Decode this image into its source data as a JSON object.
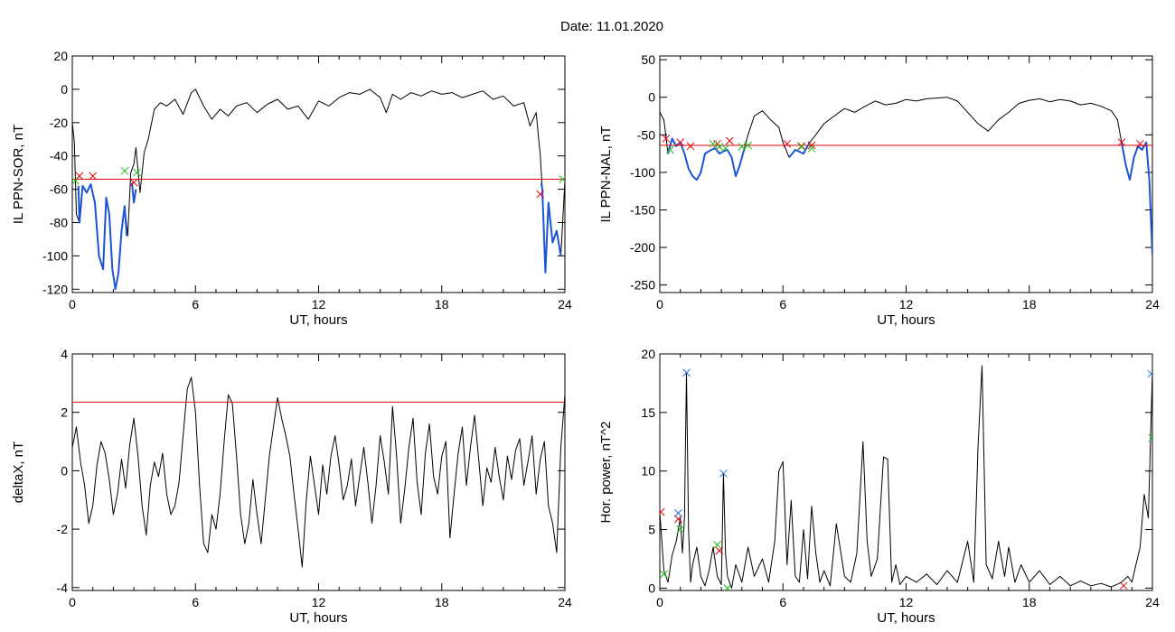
{
  "figure": {
    "title": "Date:  11.01.2020"
  },
  "colors": {
    "signal": "#000000",
    "threshold": "#e8000b",
    "segment": "#1b55d6",
    "marker_red": "#e8000b",
    "marker_green": "#1fbf1f",
    "marker_blue": "#1f6fd6"
  },
  "chart_data": [
    {
      "id": "ppn-sor",
      "type": "line",
      "title": "",
      "xlabel": "UT, hours",
      "ylabel": "IL PPN-SOR, nT",
      "xlim": [
        0,
        24
      ],
      "ylim": [
        -122,
        20
      ],
      "xticks": [
        0,
        6,
        12,
        18,
        24
      ],
      "yticks": [
        20,
        0,
        -20,
        -40,
        -60,
        -80,
        -100,
        -120
      ],
      "grid": false,
      "threshold": -54,
      "series": [
        {
          "role": "signal",
          "x": [
            0,
            0.1,
            0.2,
            0.35,
            0.5,
            0.7,
            0.9,
            1.1,
            1.3,
            1.5,
            1.65,
            1.8,
            1.95,
            2.1,
            2.25,
            2.4,
            2.55,
            2.7,
            2.85,
            3.0,
            3.1,
            3.3,
            3.5,
            3.7,
            4.0,
            4.3,
            4.6,
            5.0,
            5.4,
            5.8,
            6.0,
            6.4,
            6.8,
            7.2,
            7.6,
            8.0,
            8.5,
            9.0,
            9.5,
            10.0,
            10.5,
            11.0,
            11.5,
            12.0,
            12.5,
            13.0,
            13.5,
            14.0,
            14.5,
            15.0,
            15.3,
            15.6,
            16.0,
            16.5,
            17.0,
            17.5,
            18.0,
            18.5,
            19.0,
            19.5,
            20.0,
            20.5,
            21.0,
            21.5,
            22.0,
            22.3,
            22.6,
            22.8,
            22.9,
            23.05,
            23.2,
            23.4,
            23.6,
            23.8,
            24.0
          ],
          "y": [
            -20,
            -32,
            -75,
            -80,
            -58,
            -62,
            -57,
            -68,
            -100,
            -108,
            -65,
            -75,
            -108,
            -120,
            -110,
            -85,
            -70,
            -88,
            -50,
            -45,
            -35,
            -62,
            -38,
            -30,
            -12,
            -8,
            -10,
            -6,
            -15,
            -2,
            0,
            -10,
            -18,
            -12,
            -16,
            -10,
            -8,
            -14,
            -9,
            -6,
            -12,
            -10,
            -18,
            -7,
            -10,
            -5,
            -2,
            -3,
            0,
            -5,
            -14,
            -3,
            -6,
            -2,
            -4,
            -1,
            -3,
            -2,
            -5,
            -3,
            -1,
            -6,
            -4,
            -10,
            -8,
            -22,
            -14,
            -40,
            -60,
            -110,
            -68,
            -92,
            -85,
            -100,
            -55
          ]
        },
        {
          "role": "segment",
          "x": [
            0.3,
            0.35,
            0.5,
            0.7,
            0.9,
            1.1,
            1.3,
            1.5,
            1.65,
            1.8,
            1.95,
            2.1,
            2.25,
            2.4,
            2.55,
            2.65
          ],
          "y": [
            -58,
            -80,
            -58,
            -62,
            -57,
            -68,
            -100,
            -108,
            -65,
            -75,
            -108,
            -120,
            -110,
            -85,
            -70,
            -88
          ]
        },
        {
          "role": "segment",
          "x": [
            2.9,
            3.0,
            3.1
          ],
          "y": [
            -56,
            -68,
            -60
          ]
        },
        {
          "role": "segment",
          "x": [
            22.85,
            22.9,
            23.05,
            23.2,
            23.4,
            23.6,
            23.8
          ],
          "y": [
            -56,
            -60,
            -110,
            -68,
            -92,
            -85,
            -100
          ]
        },
        {
          "role": "marker_red",
          "x": [
            0.35,
            1.0,
            3.0,
            22.8
          ],
          "y": [
            -52,
            -52,
            -56,
            -63
          ]
        },
        {
          "role": "marker_green",
          "x": [
            0.15,
            2.55,
            3.15,
            23.9
          ],
          "y": [
            -55,
            -49,
            -50,
            -54
          ]
        }
      ]
    },
    {
      "id": "ppn-nal",
      "type": "line",
      "title": "",
      "xlabel": "UT, hours",
      "ylabel": "IL PPN-NAL, nT",
      "xlim": [
        0,
        24
      ],
      "ylim": [
        -260,
        55
      ],
      "xticks": [
        0,
        6,
        12,
        18,
        24
      ],
      "yticks": [
        50,
        0,
        -50,
        -100,
        -150,
        -200,
        -250
      ],
      "grid": false,
      "threshold": -64,
      "series": [
        {
          "role": "signal",
          "x": [
            0,
            0.2,
            0.4,
            0.6,
            0.8,
            1.0,
            1.2,
            1.4,
            1.6,
            1.8,
            2.0,
            2.2,
            2.5,
            2.7,
            2.9,
            3.1,
            3.3,
            3.5,
            3.7,
            3.9,
            4.1,
            4.3,
            4.6,
            5.0,
            5.4,
            5.8,
            6.0,
            6.3,
            6.6,
            7.0,
            7.3,
            7.6,
            8.0,
            8.5,
            9.0,
            9.5,
            10.0,
            10.5,
            11.0,
            11.5,
            12.0,
            12.5,
            13.0,
            13.5,
            14.0,
            14.5,
            15.0,
            15.5,
            16.0,
            16.5,
            17.0,
            17.5,
            18.0,
            18.5,
            19.0,
            19.5,
            20.0,
            20.5,
            21.0,
            21.5,
            22.0,
            22.3,
            22.5,
            22.7,
            22.9,
            23.1,
            23.3,
            23.5,
            23.7,
            23.85,
            24.0
          ],
          "y": [
            -20,
            -30,
            -75,
            -55,
            -65,
            -60,
            -75,
            -95,
            -105,
            -110,
            -100,
            -75,
            -70,
            -68,
            -75,
            -72,
            -70,
            -80,
            -105,
            -90,
            -70,
            -50,
            -25,
            -18,
            -30,
            -40,
            -60,
            -80,
            -70,
            -75,
            -60,
            -50,
            -35,
            -25,
            -15,
            -20,
            -12,
            -5,
            -10,
            -8,
            -3,
            -5,
            -2,
            -1,
            0,
            -5,
            -20,
            -35,
            -45,
            -30,
            -20,
            -8,
            -4,
            -2,
            -6,
            -3,
            -5,
            -10,
            -8,
            -12,
            -18,
            -30,
            -60,
            -90,
            -110,
            -80,
            -65,
            -70,
            -60,
            -110,
            -210
          ]
        },
        {
          "role": "segment",
          "x": [
            0.4,
            0.6,
            0.8,
            1.0,
            1.2,
            1.4,
            1.6,
            1.8,
            2.0,
            2.2,
            2.5,
            2.7,
            2.9,
            3.1,
            3.3,
            3.5,
            3.7,
            3.9,
            4.1
          ],
          "y": [
            -75,
            -55,
            -65,
            -60,
            -75,
            -95,
            -105,
            -110,
            -100,
            -75,
            -70,
            -68,
            -75,
            -72,
            -70,
            -80,
            -105,
            -90,
            -70
          ]
        },
        {
          "role": "segment",
          "x": [
            6.3,
            6.6,
            7.0,
            7.3
          ],
          "y": [
            -80,
            -70,
            -75,
            -60
          ]
        },
        {
          "role": "segment",
          "x": [
            22.5,
            22.7,
            22.9,
            23.1,
            23.3,
            23.5,
            23.7,
            23.85,
            24.0
          ],
          "y": [
            -60,
            -90,
            -110,
            -80,
            -65,
            -70,
            -60,
            -110,
            -210
          ]
        },
        {
          "role": "marker_red",
          "x": [
            0.3,
            1.0,
            1.5,
            2.8,
            3.4,
            6.2,
            6.9,
            7.4,
            22.5,
            23.4
          ],
          "y": [
            -55,
            -60,
            -65,
            -62,
            -58,
            -62,
            -65,
            -64,
            -60,
            -62
          ]
        },
        {
          "role": "marker_green",
          "x": [
            0.5,
            2.6,
            2.9,
            3.2,
            4.0,
            4.3,
            6.9,
            7.4
          ],
          "y": [
            -70,
            -62,
            -66,
            -68,
            -66,
            -64,
            -66,
            -68
          ]
        }
      ]
    },
    {
      "id": "deltax",
      "type": "line",
      "title": "",
      "xlabel": "UT, hours",
      "ylabel": "deltaX, nT",
      "xlim": [
        0,
        24
      ],
      "ylim": [
        -4.1,
        4
      ],
      "xticks": [
        0,
        6,
        12,
        18,
        24
      ],
      "yticks": [
        4,
        2,
        0,
        -2,
        -4
      ],
      "grid": false,
      "threshold": 2.35,
      "series": [
        {
          "role": "signal",
          "x": [
            0,
            0.2,
            0.4,
            0.6,
            0.8,
            1.0,
            1.2,
            1.4,
            1.6,
            1.8,
            2.0,
            2.2,
            2.4,
            2.6,
            2.8,
            3.0,
            3.2,
            3.4,
            3.6,
            3.8,
            4.0,
            4.2,
            4.4,
            4.6,
            4.8,
            5.0,
            5.2,
            5.4,
            5.6,
            5.8,
            6.0,
            6.2,
            6.4,
            6.6,
            6.8,
            7.0,
            7.2,
            7.4,
            7.6,
            7.8,
            8.0,
            8.2,
            8.4,
            8.6,
            8.8,
            9.0,
            9.2,
            9.4,
            9.6,
            9.8,
            10.0,
            10.2,
            10.4,
            10.6,
            10.8,
            11.0,
            11.2,
            11.4,
            11.6,
            11.8,
            12.0,
            12.2,
            12.4,
            12.6,
            12.8,
            13.0,
            13.2,
            13.4,
            13.6,
            13.8,
            14.0,
            14.2,
            14.4,
            14.6,
            14.8,
            15.0,
            15.2,
            15.4,
            15.6,
            15.8,
            16.0,
            16.2,
            16.4,
            16.6,
            16.8,
            17.0,
            17.2,
            17.4,
            17.6,
            17.8,
            18.0,
            18.2,
            18.4,
            18.6,
            18.8,
            19.0,
            19.2,
            19.4,
            19.6,
            19.8,
            20.0,
            20.2,
            20.4,
            20.6,
            20.8,
            21.0,
            21.2,
            21.4,
            21.6,
            21.8,
            22.0,
            22.2,
            22.4,
            22.6,
            22.8,
            23.0,
            23.2,
            23.4,
            23.6,
            23.8,
            24.0
          ],
          "y": [
            0.8,
            1.5,
            0.3,
            -0.5,
            -1.8,
            -1.2,
            0.2,
            1.0,
            0.6,
            -0.3,
            -1.5,
            -0.8,
            0.4,
            -0.6,
            0.9,
            1.8,
            0.5,
            -1.2,
            -2.2,
            -0.5,
            0.3,
            -0.2,
            0.6,
            -0.8,
            -1.5,
            -1.2,
            -0.4,
            1.2,
            2.8,
            3.2,
            2.0,
            -0.5,
            -2.5,
            -2.8,
            -1.5,
            -2.0,
            -0.8,
            1.0,
            2.6,
            2.3,
            0.5,
            -1.5,
            -2.5,
            -1.8,
            -0.3,
            -1.5,
            -2.5,
            -1.0,
            0.5,
            1.5,
            2.5,
            1.8,
            1.2,
            0.5,
            -0.8,
            -2.0,
            -3.3,
            -1.0,
            0.5,
            -0.5,
            -1.5,
            0.2,
            -0.8,
            0.5,
            1.2,
            0.2,
            -1.0,
            -0.5,
            0.4,
            -1.2,
            -0.2,
            0.8,
            -0.4,
            -1.8,
            -0.5,
            1.2,
            0.3,
            -0.8,
            2.2,
            0.5,
            -1.8,
            -0.6,
            0.8,
            1.8,
            -0.4,
            -1.5,
            0.6,
            1.6,
            -0.2,
            -0.8,
            0.5,
            1.0,
            -2.3,
            -0.8,
            0.6,
            1.5,
            -0.5,
            0.8,
            1.9,
            0.4,
            -1.2,
            0.1,
            -0.4,
            0.8,
            -0.2,
            -1.0,
            0.5,
            -0.3,
            0.7,
            1.1,
            -0.5,
            0.3,
            1.2,
            -0.8,
            0.4,
            1.0,
            -1.2,
            -1.8,
            -2.8,
            0.8,
            2.6
          ]
        }
      ]
    },
    {
      "id": "hor-power",
      "type": "line",
      "title": "",
      "xlabel": "UT, hours",
      "ylabel": "Hor. power, nT^2",
      "xlim": [
        0,
        24
      ],
      "ylim": [
        -0.2,
        20
      ],
      "xticks": [
        0,
        6,
        12,
        18,
        24
      ],
      "yticks": [
        20,
        15,
        10,
        5,
        0
      ],
      "grid": false,
      "threshold": null,
      "series": [
        {
          "role": "signal",
          "x": [
            0,
            0.2,
            0.4,
            0.6,
            0.8,
            1.0,
            1.1,
            1.2,
            1.3,
            1.4,
            1.5,
            1.6,
            1.8,
            2.0,
            2.2,
            2.4,
            2.6,
            2.8,
            3.0,
            3.1,
            3.2,
            3.3,
            3.5,
            3.7,
            4.0,
            4.3,
            4.6,
            5.0,
            5.3,
            5.6,
            5.8,
            6.0,
            6.2,
            6.4,
            6.6,
            6.8,
            7.0,
            7.2,
            7.4,
            7.6,
            7.8,
            8.0,
            8.3,
            8.6,
            9.0,
            9.3,
            9.6,
            9.9,
            10.1,
            10.3,
            10.6,
            10.9,
            11.1,
            11.3,
            11.5,
            11.7,
            12.0,
            12.5,
            13.0,
            13.5,
            14.0,
            14.5,
            15.0,
            15.3,
            15.5,
            15.7,
            15.9,
            16.2,
            16.5,
            16.8,
            17.0,
            17.3,
            17.6,
            18.0,
            18.5,
            19.0,
            19.5,
            20.0,
            20.5,
            21.0,
            21.5,
            22.0,
            22.5,
            22.8,
            23.0,
            23.2,
            23.4,
            23.6,
            23.8,
            24.0
          ],
          "y": [
            6.5,
            1.5,
            0.5,
            2.8,
            4.0,
            6.0,
            3.0,
            6.0,
            18.4,
            5.0,
            0.5,
            2.0,
            3.5,
            1.0,
            0.2,
            1.5,
            3.5,
            1.0,
            0.3,
            9.8,
            3.0,
            1.0,
            0.0,
            2.0,
            0.5,
            3.5,
            1.0,
            2.5,
            0.5,
            4.0,
            10.0,
            10.8,
            2.0,
            7.5,
            1.0,
            0.5,
            5.0,
            0.8,
            7.0,
            3.0,
            0.5,
            1.5,
            0.2,
            5.5,
            1.0,
            0.5,
            3.0,
            12.5,
            4.0,
            1.0,
            2.5,
            11.2,
            11.0,
            0.5,
            2.0,
            0.3,
            1.0,
            0.5,
            1.2,
            0.3,
            1.5,
            0.5,
            4.0,
            0.5,
            12.0,
            19.0,
            2.0,
            0.8,
            4.0,
            1.0,
            3.5,
            0.5,
            2.0,
            0.5,
            1.5,
            0.3,
            1.0,
            0.2,
            0.6,
            0.2,
            0.4,
            0.1,
            0.5,
            1.0,
            0.5,
            2.0,
            3.5,
            8.0,
            6.0,
            18.5
          ]
        },
        {
          "role": "marker_red",
          "x": [
            0.05,
            0.9,
            2.9,
            22.6
          ],
          "y": [
            6.5,
            5.9,
            3.2,
            0.2
          ]
        },
        {
          "role": "marker_green",
          "x": [
            0.2,
            1.0,
            2.8,
            3.3,
            24.0
          ],
          "y": [
            1.2,
            5.0,
            3.7,
            0.0,
            12.8
          ]
        },
        {
          "role": "marker_blue",
          "x": [
            0.9,
            1.3,
            3.1,
            23.95
          ],
          "y": [
            6.4,
            18.4,
            9.8,
            18.3
          ]
        }
      ]
    }
  ]
}
